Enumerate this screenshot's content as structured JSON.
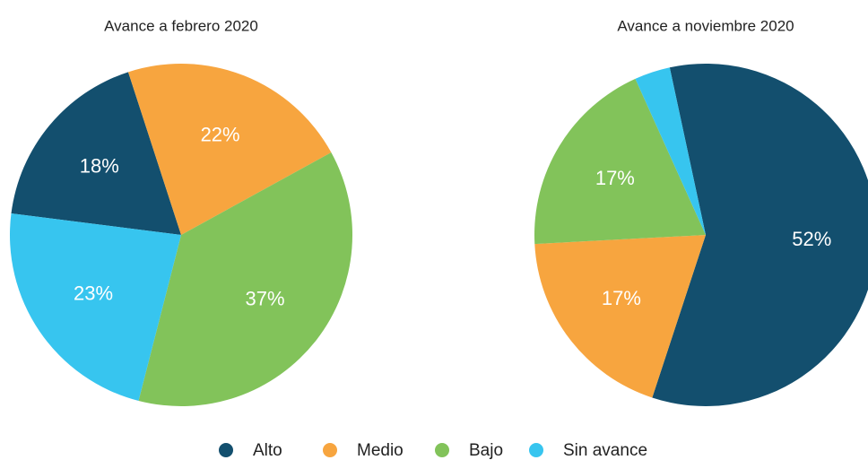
{
  "chart_data": [
    {
      "type": "pie",
      "title": "Avance a febrero 2020",
      "values": [
        18,
        22,
        37,
        23
      ],
      "value_labels": [
        "18%",
        "22%",
        "37%",
        "23%"
      ]
    },
    {
      "type": "pie",
      "title": "Avance a noviembre 2020",
      "values": [
        52,
        17,
        17,
        3
      ],
      "value_labels": [
        "52%",
        "17%",
        "17%",
        null
      ]
    }
  ],
  "legend": {
    "categories": [
      "Alto",
      "Medio",
      "Bajo",
      "Sin avance"
    ],
    "colors": [
      "#134f6e",
      "#f7a53f",
      "#82c35a",
      "#37c5ef"
    ]
  }
}
